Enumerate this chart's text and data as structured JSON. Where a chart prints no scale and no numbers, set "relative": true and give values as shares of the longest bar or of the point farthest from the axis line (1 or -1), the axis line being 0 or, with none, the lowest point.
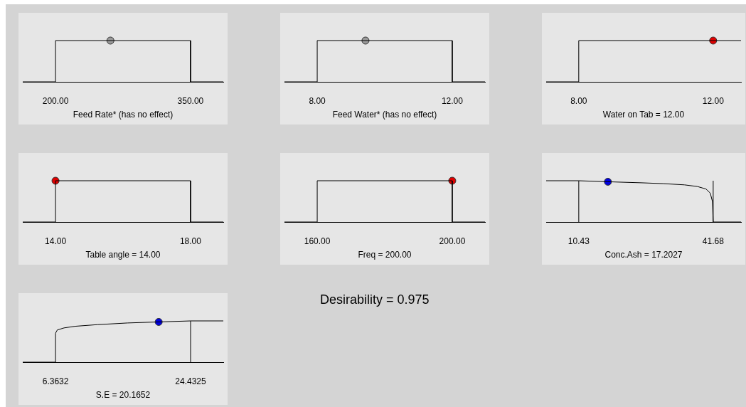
{
  "chart_data": [
    {
      "type": "line",
      "relative": true,
      "xlabel": "Feed Rate* (has no effect)",
      "xlim": [
        163.6,
        386.4
      ],
      "xticks": [
        {
          "value": 200,
          "label": "200.00"
        },
        {
          "value": 350,
          "label": "350.00"
        }
      ],
      "series": [
        {
          "color": "#000000",
          "x": [
            163.6,
            200,
            200,
            350,
            350,
            386.4
          ],
          "values": [
            0,
            0,
            1,
            1,
            0,
            0
          ]
        },
        {
          "type": "scatter",
          "color": "#999999",
          "x": [
            261
          ],
          "values": [
            1
          ]
        }
      ]
    },
    {
      "type": "line",
      "relative": true,
      "xlabel": "Feed Water* (has no effect)",
      "xlim": [
        7.03,
        12.97
      ],
      "xticks": [
        {
          "value": 8,
          "label": "8.00"
        },
        {
          "value": 12,
          "label": "12.00"
        }
      ],
      "series": [
        {
          "color": "#000000",
          "x": [
            7.03,
            8,
            8,
            12,
            12,
            12.97
          ],
          "values": [
            0,
            0,
            1,
            1,
            0,
            0
          ]
        },
        {
          "type": "scatter",
          "color": "#999999",
          "x": [
            9.43
          ],
          "values": [
            1
          ]
        }
      ]
    },
    {
      "type": "line",
      "relative": true,
      "xlabel": "Water on Tab = 12.00",
      "xlim": [
        7.03,
        12.83
      ],
      "xticks": [
        {
          "value": 8,
          "label": "8.00"
        },
        {
          "value": 12,
          "label": "12.00"
        }
      ],
      "series": [
        {
          "color": "#000000",
          "x": [
            7.03,
            8,
            8,
            12,
            12.83
          ],
          "values": [
            0,
            0,
            1,
            1,
            1
          ]
        },
        {
          "type": "scatter",
          "color": "#e00000",
          "x": [
            12
          ],
          "values": [
            1
          ]
        }
      ]
    },
    {
      "type": "line",
      "relative": true,
      "xlabel": "Table angle = 14.00",
      "xlim": [
        13.03,
        18.97
      ],
      "xticks": [
        {
          "value": 14,
          "label": "14.00"
        },
        {
          "value": 18,
          "label": "18.00"
        }
      ],
      "series": [
        {
          "color": "#000000",
          "x": [
            13.03,
            14,
            14,
            18,
            18,
            18.97
          ],
          "values": [
            0,
            0,
            1,
            1,
            0,
            0
          ]
        },
        {
          "type": "scatter",
          "color": "#e00000",
          "x": [
            14
          ],
          "values": [
            1
          ]
        }
      ]
    },
    {
      "type": "line",
      "relative": true,
      "xlabel": "Freq = 200.00",
      "xlim": [
        150.3,
        209.7
      ],
      "xticks": [
        {
          "value": 160,
          "label": "160.00"
        },
        {
          "value": 200,
          "label": "200.00"
        }
      ],
      "series": [
        {
          "color": "#000000",
          "x": [
            150.3,
            160,
            160,
            200,
            200,
            209.7
          ],
          "values": [
            0,
            0,
            1,
            1,
            0,
            0
          ]
        },
        {
          "type": "scatter",
          "color": "#e00000",
          "x": [
            200
          ],
          "values": [
            1
          ]
        }
      ]
    },
    {
      "type": "line",
      "relative": true,
      "xlabel": "Conc.Ash = 17.2027",
      "xlim": [
        2.85,
        48.15
      ],
      "xticks": [
        10.43,
        41.68
      ],
      "ref_lines": [
        {
          "axis": "x",
          "value": 10.43,
          "color": "#000000"
        },
        {
          "axis": "x",
          "value": 41.68,
          "color": "#000000"
        }
      ],
      "series": [
        {
          "color": "#000000",
          "x": [
            2.85,
            10.43,
            17.2,
            25,
            30,
            35,
            38,
            40,
            41,
            41.5,
            41.68,
            48.15
          ],
          "values": [
            1,
            1,
            0.975,
            0.95,
            0.93,
            0.9,
            0.86,
            0.8,
            0.7,
            0.5,
            0,
            0
          ]
        },
        {
          "type": "scatter",
          "color": "#0000e0",
          "x": [
            17.2027
          ],
          "values": [
            0.975
          ]
        }
      ]
    },
    {
      "type": "line",
      "relative": true,
      "xlabel": "S.E = 20.1652",
      "xlim": [
        1.98,
        28.81
      ],
      "xticks": [
        6.3632,
        24.4325
      ],
      "ref_lines": [
        {
          "axis": "x",
          "value": 24.4325,
          "color": "#000000"
        }
      ],
      "series": [
        {
          "color": "#000000",
          "x": [
            1.98,
            6.3632,
            6.3632,
            6.6,
            7.5,
            9,
            12,
            16,
            20.1652,
            24.4325,
            28.81
          ],
          "values": [
            0,
            0,
            0.7,
            0.78,
            0.83,
            0.87,
            0.91,
            0.95,
            0.975,
            1,
            1
          ]
        },
        {
          "type": "scatter",
          "color": "#0000e0",
          "x": [
            20.1652
          ],
          "values": [
            0.975
          ]
        }
      ]
    },
    {
      "type": "other",
      "title": "Desirability = 0.975"
    }
  ]
}
